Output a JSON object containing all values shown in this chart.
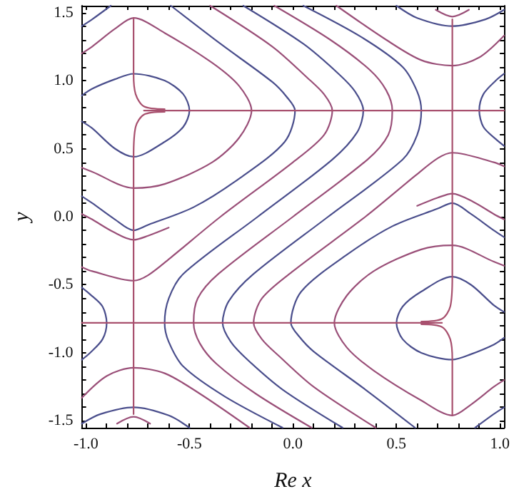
{
  "chart_data": {
    "type": "line",
    "xlabel": "Re x",
    "ylabel": "y",
    "xlim": [
      -1.02,
      1.02
    ],
    "ylim": [
      -1.55,
      1.55
    ],
    "grid": false,
    "marker": "none",
    "line_style": "solid",
    "xticks": [
      {
        "value": -1.0,
        "label": "-1.0"
      },
      {
        "value": -0.9,
        "label": null
      },
      {
        "value": -0.8,
        "label": null
      },
      {
        "value": -0.7,
        "label": null
      },
      {
        "value": -0.6,
        "label": null
      },
      {
        "value": -0.5,
        "label": "-0.5"
      },
      {
        "value": -0.4,
        "label": null
      },
      {
        "value": -0.3,
        "label": null
      },
      {
        "value": -0.2,
        "label": null
      },
      {
        "value": -0.1,
        "label": null
      },
      {
        "value": 0,
        "label": "0.0"
      },
      {
        "value": 0.1,
        "label": null
      },
      {
        "value": 0.2,
        "label": null
      },
      {
        "value": 0.3,
        "label": null
      },
      {
        "value": 0.4,
        "label": null
      },
      {
        "value": 0.5,
        "label": "0.5"
      },
      {
        "value": 0.6,
        "label": null
      },
      {
        "value": 0.7,
        "label": null
      },
      {
        "value": 0.8,
        "label": null
      },
      {
        "value": 0.9,
        "label": null
      },
      {
        "value": 1.0,
        "label": "1.0"
      }
    ],
    "yticks": [
      {
        "value": -1.5,
        "label": "-1.5"
      },
      {
        "value": -1.4,
        "label": null
      },
      {
        "value": -1.3,
        "label": null
      },
      {
        "value": -1.2,
        "label": null
      },
      {
        "value": -1.1,
        "label": null
      },
      {
        "value": -1.0,
        "label": "-1.0"
      },
      {
        "value": -0.9,
        "label": null
      },
      {
        "value": -0.8,
        "label": null
      },
      {
        "value": -0.7,
        "label": null
      },
      {
        "value": -0.6,
        "label": null
      },
      {
        "value": -0.5,
        "label": "-0.5"
      },
      {
        "value": -0.4,
        "label": null
      },
      {
        "value": -0.3,
        "label": null
      },
      {
        "value": -0.2,
        "label": null
      },
      {
        "value": -0.1,
        "label": null
      },
      {
        "value": 0,
        "label": "0.0"
      },
      {
        "value": 0.1,
        "label": null
      },
      {
        "value": 0.2,
        "label": null
      },
      {
        "value": 0.3,
        "label": null
      },
      {
        "value": 0.4,
        "label": null
      },
      {
        "value": 0.5,
        "label": "0.5"
      },
      {
        "value": 0.6,
        "label": null
      },
      {
        "value": 0.7,
        "label": null
      },
      {
        "value": 0.8,
        "label": null
      },
      {
        "value": 0.9,
        "label": null
      },
      {
        "value": 1.0,
        "label": "1.0"
      },
      {
        "value": 1.1,
        "label": null
      },
      {
        "value": 1.2,
        "label": null
      },
      {
        "value": 1.3,
        "label": null
      },
      {
        "value": 1.4,
        "label": null
      },
      {
        "value": 1.5,
        "label": "1.5"
      }
    ],
    "series": [
      {
        "color": "#4a4e8c",
        "x": [
          -1.02,
          -0.97,
          -0.86,
          -0.77,
          -0.62,
          -0.53,
          -0.5,
          -0.53,
          -0.62,
          -0.77,
          -0.86,
          -0.97,
          -1.02
        ],
        "values": [
          0.89,
          0.94,
          1.01,
          1.05,
          1.0,
          0.9,
          0.78,
          0.66,
          0.55,
          0.44,
          0.5,
          0.65,
          0.7
        ]
      },
      {
        "color": "#4a4e8c",
        "x": [
          1.02,
          0.97,
          0.86,
          0.77,
          0.62,
          0.53,
          0.5,
          0.53,
          0.62,
          0.77,
          0.86,
          0.97,
          1.02
        ],
        "values": [
          -0.89,
          -0.94,
          -1.01,
          -1.05,
          -1.0,
          -0.9,
          -0.78,
          -0.66,
          -0.55,
          -0.44,
          -0.5,
          -0.65,
          -0.7
        ]
      },
      {
        "color": "#9a4f78",
        "x": [
          -1.02,
          -0.97,
          -0.86,
          -0.77,
          -0.62,
          -0.39,
          -0.26,
          -0.2,
          -0.26,
          -0.39,
          -0.62,
          -0.77,
          -0.97,
          -1.02
        ],
        "values": [
          1.2,
          1.25,
          1.38,
          1.46,
          1.35,
          1.13,
          0.96,
          0.78,
          0.58,
          0.4,
          0.24,
          0.21,
          0.33,
          0.36
        ]
      },
      {
        "color": "#9a4f78",
        "x": [
          1.02,
          0.97,
          0.86,
          0.77,
          0.62,
          0.39,
          0.26,
          0.2,
          0.26,
          0.39,
          0.62,
          0.77,
          0.97,
          1.02
        ],
        "values": [
          -1.2,
          -1.25,
          -1.38,
          -1.46,
          -1.35,
          -1.13,
          -0.96,
          -0.78,
          -0.58,
          -0.4,
          -0.24,
          -0.21,
          -0.33,
          -0.36
        ]
      },
      {
        "color": "#4a4e8c",
        "x": [
          -1.02,
          -0.97,
          -0.88
        ],
        "values": [
          1.4,
          1.45,
          1.55
        ]
      },
      {
        "color": "#4a4e8c",
        "x": [
          1.02,
          0.97,
          0.88
        ],
        "values": [
          -1.4,
          -1.45,
          -1.55
        ]
      },
      {
        "color": "#4a4e8c",
        "x": [
          -0.59,
          -0.35,
          -0.1,
          -0.03,
          0.01,
          -0.04,
          -0.26,
          -0.48,
          -0.7,
          -0.77,
          -0.86,
          -0.97,
          -1.02
        ],
        "values": [
          1.55,
          1.27,
          0.99,
          0.88,
          0.78,
          0.55,
          0.28,
          0.07,
          -0.06,
          -0.1,
          -0.02,
          0.1,
          0.15
        ]
      },
      {
        "color": "#4a4e8c",
        "x": [
          0.59,
          0.35,
          0.1,
          0.03,
          -0.01,
          0.04,
          0.26,
          0.48,
          0.7,
          0.77,
          0.86,
          0.97,
          1.02
        ],
        "values": [
          -1.55,
          -1.27,
          -0.99,
          -0.88,
          -0.78,
          -0.55,
          -0.28,
          -0.07,
          0.06,
          0.1,
          0.02,
          -0.1,
          -0.15
        ]
      },
      {
        "color": "#9a4f78",
        "x": [
          -0.4,
          -0.1,
          0.07,
          0.15,
          0.19,
          0.15,
          0.0,
          -0.35,
          -0.59,
          -0.7,
          -0.77,
          -0.97,
          -1.02
        ],
        "values": [
          1.55,
          1.25,
          1.02,
          0.9,
          0.78,
          0.6,
          0.4,
          0.0,
          -0.3,
          -0.43,
          -0.47,
          -0.4,
          -0.37
        ]
      },
      {
        "color": "#9a4f78",
        "x": [
          0.4,
          0.1,
          -0.07,
          -0.15,
          -0.19,
          -0.15,
          0.0,
          0.35,
          0.59,
          0.7,
          0.77,
          0.97,
          1.02
        ],
        "values": [
          -1.55,
          -1.25,
          -1.02,
          -0.9,
          -0.78,
          -0.6,
          -0.4,
          0.0,
          0.3,
          0.43,
          0.47,
          0.4,
          0.37
        ]
      },
      {
        "color": "#4a4e8c",
        "x": [
          -0.24,
          0.05,
          0.22,
          0.3,
          0.34,
          0.31,
          0.19,
          -0.17,
          -0.53,
          -0.6,
          -0.62,
          -0.6,
          -0.53,
          -0.33,
          -0.05
        ],
        "values": [
          1.55,
          1.27,
          1.05,
          0.92,
          0.78,
          0.62,
          0.42,
          0.0,
          -0.42,
          -0.6,
          -0.78,
          -0.92,
          -1.1,
          -1.32,
          -1.55
        ]
      },
      {
        "color": "#4a4e8c",
        "x": [
          0.24,
          -0.05,
          -0.22,
          -0.3,
          -0.34,
          -0.31,
          -0.19,
          0.17,
          0.53,
          0.6,
          0.62,
          0.6,
          0.53,
          0.33,
          0.05
        ],
        "values": [
          -1.55,
          -1.27,
          -1.05,
          -0.92,
          -0.78,
          -0.62,
          -0.42,
          0.0,
          0.42,
          0.6,
          0.78,
          0.92,
          1.1,
          1.32,
          1.55
        ]
      },
      {
        "color": "#9a4f78",
        "x": [
          -0.09,
          0.18,
          0.37,
          0.45,
          0.48,
          0.46,
          0.36,
          0.0,
          -0.36,
          -0.46,
          -0.48,
          -0.45,
          -0.37,
          -0.18,
          0.09
        ],
        "values": [
          1.55,
          1.3,
          1.08,
          0.93,
          0.78,
          0.6,
          0.42,
          0.0,
          -0.42,
          -0.6,
          -0.78,
          -0.93,
          -1.08,
          -1.3,
          -1.55
        ]
      },
      {
        "color": "#9a4f78",
        "x": [
          0.21,
          0.45,
          0.62,
          0.77,
          0.9,
          1.02
        ],
        "values": [
          1.55,
          1.3,
          1.15,
          1.11,
          1.17,
          1.33
        ]
      },
      {
        "color": "#9a4f78",
        "x": [
          -0.21,
          -0.45,
          -0.62,
          -0.77,
          -0.9,
          -1.02
        ],
        "values": [
          -1.55,
          -1.3,
          -1.15,
          -1.11,
          -1.17,
          -1.33
        ]
      },
      {
        "color": "#4a4e8c",
        "x": [
          0.5,
          0.6,
          0.77,
          0.93,
          1.02
        ],
        "values": [
          1.55,
          1.46,
          1.4,
          1.45,
          1.52
        ]
      },
      {
        "color": "#4a4e8c",
        "x": [
          -0.5,
          -0.6,
          -0.77,
          -0.93,
          -1.02
        ],
        "values": [
          -1.55,
          -1.46,
          -1.4,
          -1.45,
          -1.52
        ]
      },
      {
        "color": "#9a4f78",
        "x": [
          0.69,
          0.77,
          0.85
        ],
        "values": [
          1.52,
          1.47,
          1.52
        ]
      },
      {
        "color": "#9a4f78",
        "x": [
          -0.69,
          -0.77,
          -0.85
        ],
        "values": [
          -1.52,
          -1.47,
          -1.52
        ]
      },
      {
        "color": "#4a4e8c",
        "x": [
          1.02,
          0.98,
          0.92,
          0.9,
          0.92,
          0.98,
          1.02
        ],
        "values": [
          1.05,
          1.0,
          0.9,
          0.78,
          0.66,
          0.57,
          0.52
        ]
      },
      {
        "color": "#4a4e8c",
        "x": [
          -1.02,
          -0.98,
          -0.92,
          -0.9,
          -0.92,
          -0.98,
          -1.02
        ],
        "values": [
          -1.05,
          -1.0,
          -0.9,
          -0.78,
          -0.66,
          -0.57,
          -0.52
        ]
      },
      {
        "color": "#9a4f78",
        "x": [
          -0.6,
          -0.7,
          -0.77,
          -0.87,
          -0.97,
          -1.02
        ],
        "values": [
          -0.08,
          -0.14,
          -0.17,
          -0.11,
          -0.02,
          0.02
        ]
      },
      {
        "color": "#9a4f78",
        "x": [
          0.6,
          0.7,
          0.77,
          0.87,
          0.97,
          1.02
        ],
        "values": [
          0.08,
          0.14,
          0.17,
          0.11,
          0.02,
          -0.02
        ]
      },
      {
        "color": "#a8506e",
        "x": [
          -0.77,
          -0.77,
          -0.76,
          -0.72,
          -0.62
        ],
        "values": [
          1.46,
          1.05,
          0.9,
          0.81,
          0.79
        ]
      },
      {
        "color": "#a8506e",
        "x": [
          -0.62,
          -0.72,
          -0.76,
          -0.77,
          -0.77
        ],
        "values": [
          0.77,
          0.75,
          0.66,
          0.44,
          -1.45
        ]
      },
      {
        "color": "#a8506e",
        "x": [
          -0.72,
          1.02
        ],
        "values": [
          0.78,
          0.78
        ]
      },
      {
        "color": "#a8506e",
        "x": [
          0.77,
          0.77,
          0.76,
          0.72,
          0.62
        ],
        "values": [
          -1.46,
          -1.05,
          -0.9,
          -0.81,
          -0.79
        ]
      },
      {
        "color": "#a8506e",
        "x": [
          0.62,
          0.72,
          0.76,
          0.77,
          0.77
        ],
        "values": [
          -0.77,
          -0.75,
          -0.66,
          -0.44,
          1.45
        ]
      },
      {
        "color": "#a8506e",
        "x": [
          0.72,
          -1.02
        ],
        "values": [
          -0.78,
          -0.78
        ]
      }
    ]
  }
}
